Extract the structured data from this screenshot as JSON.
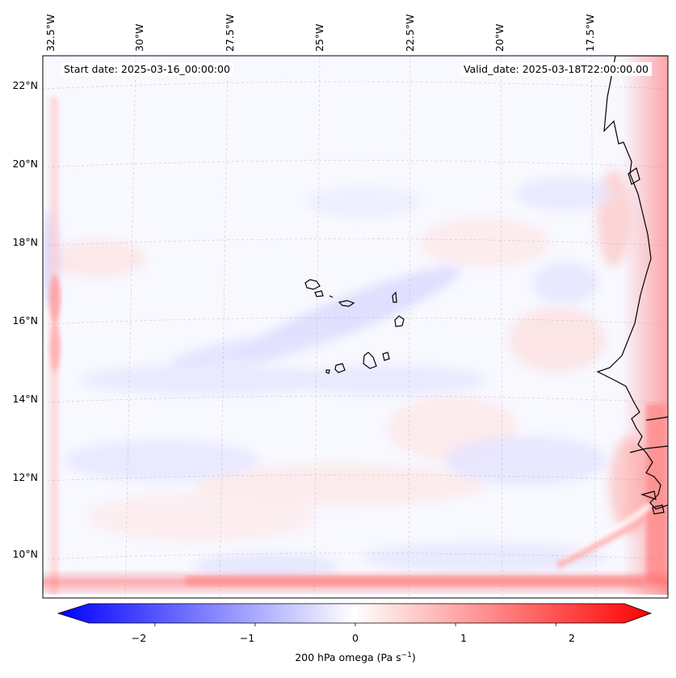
{
  "header": {
    "start_date": "Start date: 2025-03-16_00:00:00",
    "valid_date": "Valid_date: 2025-03-18T22:00:00.00"
  },
  "axes": {
    "lon_labels": [
      "32.5°W",
      "30°W",
      "27.5°W",
      "25°W",
      "22.5°W",
      "20°W",
      "17.5°W"
    ],
    "lat_labels": [
      "22°N",
      "20°N",
      "18°N",
      "16°N",
      "14°N",
      "12°N",
      "10°N"
    ]
  },
  "colorbar": {
    "label_main": "200 hPa omega (Pa s",
    "label_exp": "−1",
    "label_close": ")",
    "ticks": [
      "−2",
      "−1",
      "0",
      "1",
      "2"
    ],
    "range": [
      -2.7,
      2.7
    ],
    "colormap": "bwr",
    "extend": "both"
  },
  "colors": {
    "negative": "#0000ff",
    "positive": "#ff0000",
    "zero": "#ffffff",
    "coastline": "#000000"
  },
  "map": {
    "field": "200 hPa omega",
    "features": [
      "Cape Verde islands",
      "West African coastline"
    ]
  }
}
